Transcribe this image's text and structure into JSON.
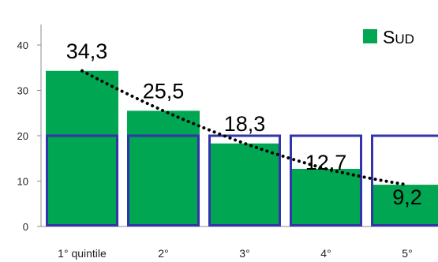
{
  "chart_data": {
    "type": "bar",
    "categories": [
      "1° quintile",
      "2°",
      "3°",
      "4°",
      "5°"
    ],
    "series": [
      {
        "name": "SUD",
        "values": [
          34.3,
          25.5,
          18.3,
          12.7,
          9.2
        ],
        "color": "#00a651"
      }
    ],
    "data_labels": [
      "34,3",
      "25,5",
      "18,3",
      "12,7",
      "9,2"
    ],
    "yticks": [
      "0",
      "10",
      "20",
      "30",
      "40"
    ],
    "ylim": [
      0,
      45
    ],
    "reference_line": {
      "value": 20,
      "color": "#3333aa",
      "style": "outlined box per category"
    },
    "trendline": {
      "style": "dotted",
      "color": "#000000"
    },
    "legend": {
      "position": "top-right",
      "label_first": "S",
      "label_rest": "UD"
    },
    "grid": false
  }
}
